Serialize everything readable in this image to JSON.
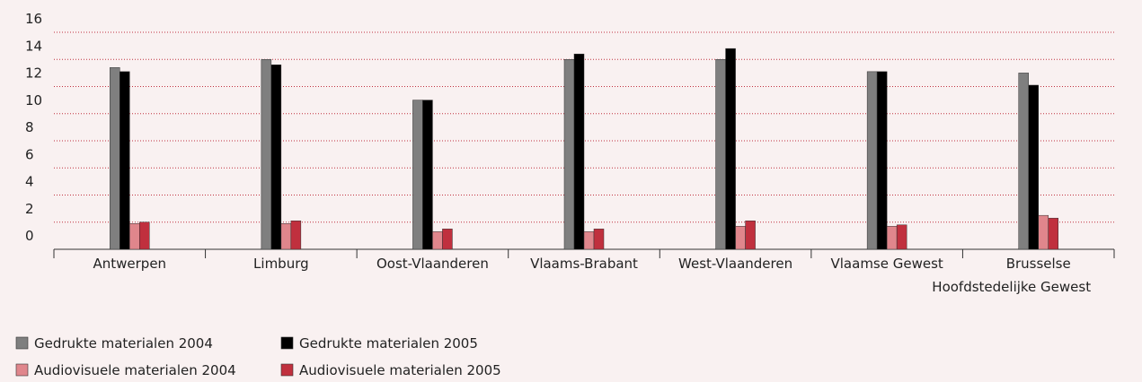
{
  "chart_data": {
    "type": "bar",
    "categories": [
      "Antwerpen",
      "Limburg",
      "Oost-Vlaanderen",
      "Vlaams-Brabant",
      "West-Vlaanderen",
      "Vlaamse Gewest",
      "Brusselse Hoofdstedelijke Gewest"
    ],
    "series": [
      {
        "name": "Gedrukte materialen 2004",
        "color": "#7f7f7f",
        "values": [
          13.4,
          14.0,
          11.0,
          14.0,
          14.0,
          13.1,
          13.0
        ]
      },
      {
        "name": "Gedrukte materialen 2005",
        "color": "#000000",
        "values": [
          13.1,
          13.6,
          11.0,
          14.4,
          14.8,
          13.1,
          12.1
        ]
      },
      {
        "name": "Audiovisuele materialen 2004",
        "color": "#e0868c",
        "values": [
          1.9,
          1.9,
          1.3,
          1.3,
          1.7,
          1.7,
          2.5
        ]
      },
      {
        "name": "Audiovisuele materialen 2005",
        "color": "#c0303e",
        "values": [
          2.0,
          2.1,
          1.5,
          1.5,
          2.1,
          1.8,
          2.3
        ]
      }
    ],
    "ylim": [
      0,
      16
    ],
    "yticks": [
      0,
      2,
      4,
      6,
      8,
      10,
      12,
      14,
      16
    ],
    "grid": true
  }
}
